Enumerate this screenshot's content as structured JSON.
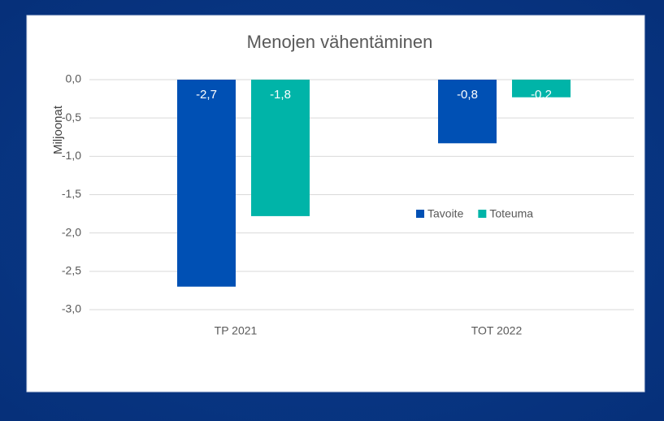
{
  "chart_data": {
    "type": "bar",
    "title": "Menojen vähentäminen",
    "y_label": "Miljoonat",
    "categories": [
      "TP 2021",
      "TOT 2022"
    ],
    "series": [
      {
        "name": "Tavoite",
        "color": "#0050b4",
        "values": [
          -2.7,
          -0.83
        ],
        "value_labels": [
          "-2,7",
          "-0,8"
        ]
      },
      {
        "name": "Toteuma",
        "color": "#00b4a8",
        "values": [
          -1.78,
          -0.23
        ],
        "value_labels": [
          "-1,8",
          "-0,2"
        ]
      }
    ],
    "ylim": [
      -3,
      0
    ],
    "yticks": [
      {
        "value": 0,
        "label": "0,0"
      },
      {
        "value": -0.5,
        "label": "-0,5"
      },
      {
        "value": -1,
        "label": "-1,0"
      },
      {
        "value": -1.5,
        "label": "-1,5"
      },
      {
        "value": -2,
        "label": "-2,0"
      },
      {
        "value": -2.5,
        "label": "-2,5"
      },
      {
        "value": -3,
        "label": "-3,0"
      }
    ],
    "grid": true,
    "legend": "right"
  }
}
